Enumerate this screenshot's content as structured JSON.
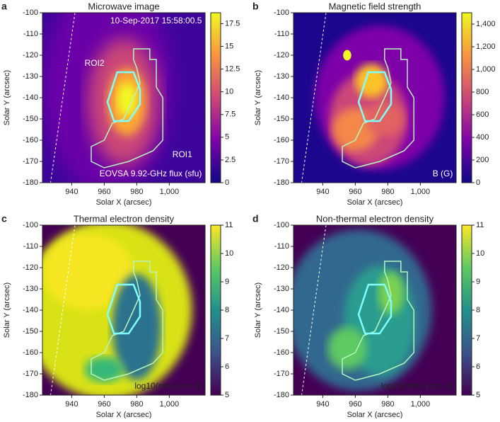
{
  "chart_data": [
    {
      "type": "image",
      "panel": "a",
      "title": "Microwave image",
      "xlabel": "Solar X (arcsec)",
      "ylabel": "Solar Y (arcsec)",
      "xlim": [
        922,
        1022
      ],
      "xticks": [
        940,
        960,
        980,
        {
          "value": 1000,
          "label": "1,000"
        }
      ],
      "ylim": [
        -180,
        -100
      ],
      "yticks": [
        -100,
        -110,
        -120,
        -130,
        -140,
        -150,
        -160,
        -170,
        -180
      ],
      "colormap": "plasma",
      "clim": [
        0,
        18.7
      ],
      "cticks": [
        0,
        2.5,
        5.0,
        7.5,
        10.0,
        12.5,
        15.0,
        17.5
      ],
      "annotations": [
        "10-Sep-2017 15:58:00.5",
        "ROI2",
        "ROI1",
        "EOVSA 9.92-GHz flux (sfu)"
      ]
    },
    {
      "type": "image",
      "panel": "b",
      "title": "Magnetic field strength",
      "xlabel": "Solar X (arcsec)",
      "ylabel": "Solar Y (arcsec)",
      "xlim": [
        922,
        1022
      ],
      "xticks": [
        940,
        960,
        980,
        {
          "value": 1000,
          "label": "1,000"
        }
      ],
      "ylim": [
        -180,
        -100
      ],
      "yticks": [
        -100,
        -110,
        -120,
        -130,
        -140,
        -150,
        -160,
        -170,
        -180
      ],
      "colormap": "plasma",
      "clim": [
        0,
        1500
      ],
      "cticks": [
        0,
        200,
        400,
        600,
        800,
        {
          "value": 1000,
          "label": "1,000"
        },
        {
          "value": 1200,
          "label": "1,200"
        },
        {
          "value": 1400,
          "label": "1,400"
        }
      ],
      "annotations": [
        "B (G)"
      ]
    },
    {
      "type": "image",
      "panel": "c",
      "title": "Thermal electron density",
      "xlabel": "Solar X (arcsec)",
      "ylabel": "Solar Y (arcsec)",
      "xlim": [
        922,
        1022
      ],
      "xticks": [
        940,
        960,
        980,
        {
          "value": 1000,
          "label": "1,000"
        }
      ],
      "ylim": [
        -180,
        -100
      ],
      "yticks": [
        -100,
        -110,
        -120,
        -130,
        -140,
        -150,
        -160,
        -170,
        -180
      ],
      "colormap": "viridis",
      "clim": [
        5,
        11
      ],
      "cticks": [
        5,
        6,
        7,
        8,
        9,
        10,
        11
      ],
      "annotations": [
        "log10(nth) (cm−3)"
      ]
    },
    {
      "type": "image",
      "panel": "d",
      "title": "Non-thermal electron density",
      "xlabel": "Solar X (arcsec)",
      "ylabel": "Solar Y (arcsec)",
      "xlim": [
        922,
        1022
      ],
      "xticks": [
        940,
        960,
        980,
        {
          "value": 1000,
          "label": "1,000"
        }
      ],
      "ylim": [
        -180,
        -100
      ],
      "yticks": [
        -100,
        -110,
        -120,
        -130,
        -140,
        -150,
        -160,
        -170,
        -180
      ],
      "colormap": "viridis",
      "clim": [
        5,
        11
      ],
      "cticks": [
        5,
        6,
        7,
        8,
        9,
        10,
        11
      ],
      "annotations": [
        "log10(nnth) (cm−3)"
      ]
    }
  ]
}
